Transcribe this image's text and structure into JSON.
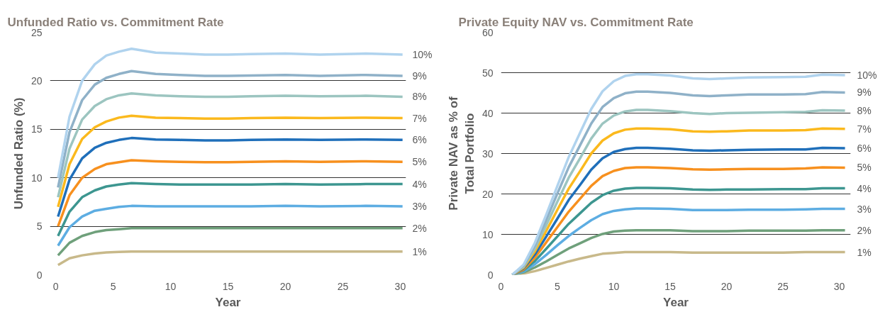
{
  "chart_data": [
    {
      "type": "line",
      "title": "Unfunded Ratio vs. Commitment Rate",
      "xlabel": "Year",
      "ylabel": "Unfunded Ratio (%)",
      "xlim": [
        -0.5,
        30.5
      ],
      "ylim": [
        0,
        25
      ],
      "xticks": [
        0,
        5,
        10,
        15,
        20,
        25,
        30
      ],
      "yticks": [
        0,
        5,
        10,
        15,
        20,
        25
      ],
      "grid": "y",
      "legend": false,
      "x": [
        0.2,
        1.2,
        2.3,
        3.4,
        4.4,
        5.5,
        6.6,
        8.7,
        10.8,
        13,
        15,
        17,
        20,
        23,
        27,
        30.2
      ],
      "series": [
        {
          "name": "1%",
          "color": "#c8b98a",
          "values": [
            1,
            1.7,
            2.0,
            2.2,
            2.3,
            2.35,
            2.4,
            2.4,
            2.4,
            2.4,
            2.4,
            2.4,
            2.4,
            2.4,
            2.4,
            2.4
          ]
        },
        {
          "name": "2%",
          "color": "#6fa07b",
          "values": [
            2,
            3.3,
            4.0,
            4.4,
            4.6,
            4.7,
            4.8,
            4.8,
            4.8,
            4.8,
            4.8,
            4.8,
            4.8,
            4.8,
            4.8,
            4.8
          ]
        },
        {
          "name": "3%",
          "color": "#5dade2",
          "values": [
            3,
            4.9,
            6.0,
            6.6,
            6.8,
            7.0,
            7.1,
            7.05,
            7.05,
            7.05,
            7.05,
            7.05,
            7.1,
            7.05,
            7.1,
            7.05
          ]
        },
        {
          "name": "4%",
          "color": "#3d9690",
          "values": [
            4,
            6.5,
            8.0,
            8.7,
            9.1,
            9.3,
            9.45,
            9.35,
            9.3,
            9.3,
            9.3,
            9.3,
            9.35,
            9.3,
            9.35,
            9.35
          ]
        },
        {
          "name": "5%",
          "color": "#f7901e",
          "values": [
            5,
            8.2,
            10,
            10.9,
            11.4,
            11.6,
            11.8,
            11.7,
            11.65,
            11.6,
            11.6,
            11.65,
            11.7,
            11.65,
            11.7,
            11.65
          ]
        },
        {
          "name": "6%",
          "color": "#1f6fba",
          "values": [
            6,
            9.8,
            12,
            13.1,
            13.6,
            13.9,
            14.1,
            13.95,
            13.9,
            13.85,
            13.85,
            13.9,
            13.95,
            13.9,
            13.95,
            13.9
          ]
        },
        {
          "name": "7%",
          "color": "#fbb91d",
          "values": [
            7,
            11.4,
            14,
            15.2,
            15.8,
            16.2,
            16.4,
            16.2,
            16.15,
            16.1,
            16.1,
            16.15,
            16.2,
            16.15,
            16.2,
            16.15
          ]
        },
        {
          "name": "8%",
          "color": "#9cc5c0",
          "values": [
            8,
            13,
            16,
            17.4,
            18.1,
            18.5,
            18.7,
            18.5,
            18.4,
            18.35,
            18.35,
            18.4,
            18.45,
            18.4,
            18.45,
            18.35
          ]
        },
        {
          "name": "9%",
          "color": "#8fb1c8",
          "values": [
            9,
            14.7,
            18,
            19.6,
            20.3,
            20.7,
            21.0,
            20.7,
            20.6,
            20.5,
            20.5,
            20.55,
            20.6,
            20.5,
            20.6,
            20.5
          ]
        },
        {
          "name": "10%",
          "color": "#b0d3ee",
          "values": [
            10,
            16.3,
            20,
            21.7,
            22.6,
            23.0,
            23.3,
            22.9,
            22.8,
            22.7,
            22.7,
            22.75,
            22.8,
            22.7,
            22.8,
            22.7
          ]
        }
      ]
    },
    {
      "type": "line",
      "title": "Private Equity NAV vs. Commitment Rate",
      "xlabel": "Year",
      "ylabel": "Private NAV as % of\nTotal Portfolio",
      "xlim": [
        0,
        31
      ],
      "ylim": [
        0,
        60
      ],
      "xticks": [
        0,
        5,
        10,
        15,
        20,
        25,
        30
      ],
      "yticks": [
        0,
        10,
        20,
        30,
        40,
        50,
        60
      ],
      "grid": "y",
      "legend": false,
      "x": [
        1,
        2,
        3,
        4,
        5,
        6,
        7,
        8,
        9,
        10,
        11,
        12,
        13,
        15,
        17,
        18.5,
        20,
        22,
        25,
        27,
        28.5,
        30.5
      ],
      "series": [
        {
          "name": "1%",
          "color": "#c8b98a",
          "values": [
            0,
            0.3,
            0.9,
            1.7,
            2.5,
            3.3,
            4,
            4.6,
            5.2,
            5.4,
            5.6,
            5.6,
            5.6,
            5.6,
            5.5,
            5.5,
            5.5,
            5.5,
            5.5,
            5.6,
            5.6,
            5.6
          ]
        },
        {
          "name": "2%",
          "color": "#6fa07b",
          "values": [
            0,
            0.6,
            1.8,
            3.3,
            4.9,
            6.5,
            7.8,
            9.1,
            10.1,
            10.7,
            10.9,
            11,
            11,
            11,
            10.8,
            10.8,
            10.8,
            10.9,
            10.9,
            10.9,
            11,
            11
          ]
        },
        {
          "name": "3%",
          "color": "#5dade2",
          "values": [
            0,
            0.8,
            2.6,
            4.9,
            7.3,
            9.6,
            11.6,
            13.5,
            15,
            15.8,
            16.2,
            16.4,
            16.4,
            16.3,
            16,
            16,
            16,
            16.1,
            16.1,
            16.2,
            16.3,
            16.3
          ]
        },
        {
          "name": "4%",
          "color": "#3d9690",
          "values": [
            0,
            1.1,
            3.4,
            6.4,
            9.5,
            12.6,
            15.2,
            17.8,
            19.7,
            20.8,
            21.3,
            21.5,
            21.5,
            21.4,
            21.1,
            21,
            21.1,
            21.1,
            21.2,
            21.2,
            21.4,
            21.4
          ]
        },
        {
          "name": "5%",
          "color": "#f7901e",
          "values": [
            0,
            1.3,
            4.2,
            8,
            11.8,
            15.6,
            18.8,
            22,
            24.4,
            25.7,
            26.4,
            26.6,
            26.6,
            26.4,
            26.1,
            26,
            26.1,
            26.2,
            26.2,
            26.3,
            26.6,
            26.5
          ]
        },
        {
          "name": "6%",
          "color": "#1f6fba",
          "values": [
            0,
            1.6,
            5,
            9.4,
            13.9,
            18.5,
            22.2,
            26,
            28.8,
            30.4,
            31.1,
            31.4,
            31.4,
            31.2,
            30.8,
            30.7,
            30.8,
            30.9,
            31,
            31,
            31.4,
            31.3
          ]
        },
        {
          "name": "7%",
          "color": "#fbb91d",
          "values": [
            0,
            1.8,
            5.8,
            10.8,
            16.1,
            21.3,
            25.6,
            30,
            33.2,
            35,
            35.9,
            36.2,
            36.2,
            36,
            35.5,
            35.4,
            35.5,
            35.7,
            35.7,
            35.8,
            36.2,
            36.1
          ]
        },
        {
          "name": "8%",
          "color": "#9cc5c0",
          "values": [
            0,
            2,
            6.5,
            12.2,
            18.1,
            24,
            28.8,
            33.7,
            37.4,
            39.4,
            40.4,
            40.8,
            40.8,
            40.5,
            40,
            39.8,
            40,
            40.1,
            40.2,
            40.3,
            40.7,
            40.6
          ]
        },
        {
          "name": "9%",
          "color": "#8fb1c8",
          "values": [
            0,
            2.3,
            7.2,
            13.5,
            20.1,
            26.6,
            32,
            37.4,
            41.5,
            43.7,
            44.9,
            45.3,
            45.3,
            45,
            44.4,
            44.2,
            44.4,
            44.6,
            44.6,
            44.7,
            45.2,
            45.1
          ]
        },
        {
          "name": "10%",
          "color": "#b0d3ee",
          "values": [
            0,
            2.5,
            7.9,
            14.8,
            22,
            29.1,
            35.1,
            41,
            45.4,
            47.9,
            49.2,
            49.6,
            49.6,
            49.3,
            48.6,
            48.4,
            48.6,
            48.8,
            48.9,
            49,
            49.5,
            49.4
          ]
        }
      ]
    }
  ]
}
